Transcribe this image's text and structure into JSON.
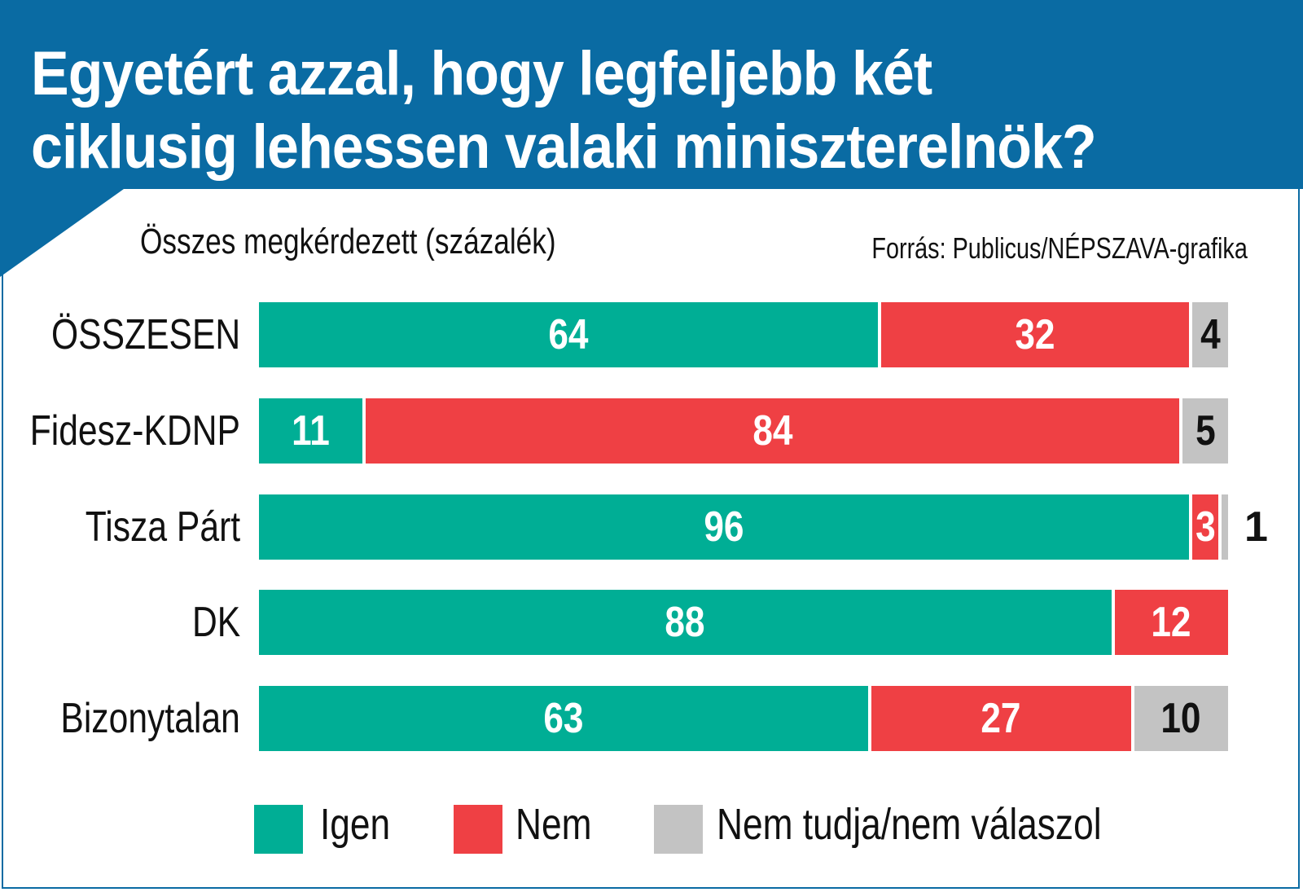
{
  "chart_data": {
    "type": "bar",
    "orientation": "horizontal-stacked-100",
    "title": "Egyetért azzal, hogy legfeljebb két ciklusig lehessen valaki miniszterelnök?",
    "title_lines": [
      "Egyetért azzal, hogy legfeljebb két",
      "ciklusig lehessen valaki miniszterelnök?"
    ],
    "subtitle": "Összes megkérdezett (százalék)",
    "source": "Forrás: Publicus/NÉPSZAVA-grafika",
    "categories": [
      "ÖSSZESEN",
      "Fidesz-KDNP",
      "Tisza Párt",
      "DK",
      "Bizonytalan"
    ],
    "series": [
      {
        "name": "Igen",
        "color": "#00ae95",
        "values": [
          64,
          11,
          96,
          88,
          63
        ]
      },
      {
        "name": "Nem",
        "color": "#ef4044",
        "values": [
          32,
          84,
          3,
          12,
          27
        ]
      },
      {
        "name": "Nem tudja/nem válaszol",
        "color": "#c3c3c3",
        "values": [
          4,
          5,
          1,
          0,
          10
        ]
      }
    ],
    "xlim": [
      0,
      100
    ],
    "grid": false,
    "legend_position": "bottom"
  },
  "colors": {
    "header": "#0a6ba3"
  }
}
